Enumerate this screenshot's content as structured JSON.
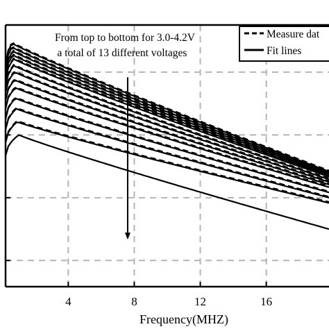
{
  "chart_data": {
    "type": "line",
    "xlabel": "Frequency(MHZ)",
    "ylabel": "",
    "title": "",
    "xlim": [
      0.2,
      19.8
    ],
    "ylim": [
      0,
      1
    ],
    "x_ticks": [
      4,
      8,
      12,
      16
    ],
    "x_tick_labels": [
      "4",
      "8",
      "12",
      "16"
    ],
    "y_ticks": [
      0.1,
      0.34,
      0.58,
      0.82
    ],
    "grid": true,
    "legend_position": "top-right",
    "legend": [
      {
        "label": "Measure dat",
        "style": "dashed"
      },
      {
        "label": "Fit lines",
        "style": "solid"
      }
    ],
    "annotation": {
      "lines": [
        "From top to bottom for 3.0-4.2V",
        "a total of 13 different voltages"
      ],
      "arrow_x": 7.6,
      "arrow_from_y": 0.8,
      "arrow_to_y": 0.18
    },
    "series": [
      {
        "values_start": 0.93,
        "values_end": 0.44,
        "peak_x": 0.6,
        "measured": true
      },
      {
        "values_start": 0.915,
        "values_end": 0.435,
        "peak_x": 0.6,
        "measured": true
      },
      {
        "values_start": 0.9,
        "values_end": 0.43,
        "peak_x": 0.65,
        "measured": true
      },
      {
        "values_start": 0.885,
        "values_end": 0.425,
        "peak_x": 0.65,
        "measured": true
      },
      {
        "values_start": 0.87,
        "values_end": 0.42,
        "peak_x": 0.7,
        "measured": true
      },
      {
        "values_start": 0.845,
        "values_end": 0.41,
        "peak_x": 0.7,
        "measured": true
      },
      {
        "values_start": 0.82,
        "values_end": 0.4,
        "peak_x": 0.75,
        "measured": true
      },
      {
        "values_start": 0.79,
        "values_end": 0.39,
        "peak_x": 0.75,
        "measured": true
      },
      {
        "values_start": 0.76,
        "values_end": 0.38,
        "peak_x": 0.8,
        "measured": true
      },
      {
        "values_start": 0.72,
        "values_end": 0.36,
        "peak_x": 0.8,
        "measured": true
      },
      {
        "values_start": 0.68,
        "values_end": 0.34,
        "peak_x": 0.85,
        "measured": true
      },
      {
        "values_start": 0.63,
        "values_end": 0.32,
        "peak_x": 0.9,
        "measured": true
      },
      {
        "values_start": 0.58,
        "values_end": 0.22,
        "peak_x": 1.0,
        "measured": false
      }
    ],
    "colors": {
      "line": "#000000",
      "grid": "#b4b4b4",
      "axis": "#000000",
      "background": "#ffffff"
    }
  }
}
